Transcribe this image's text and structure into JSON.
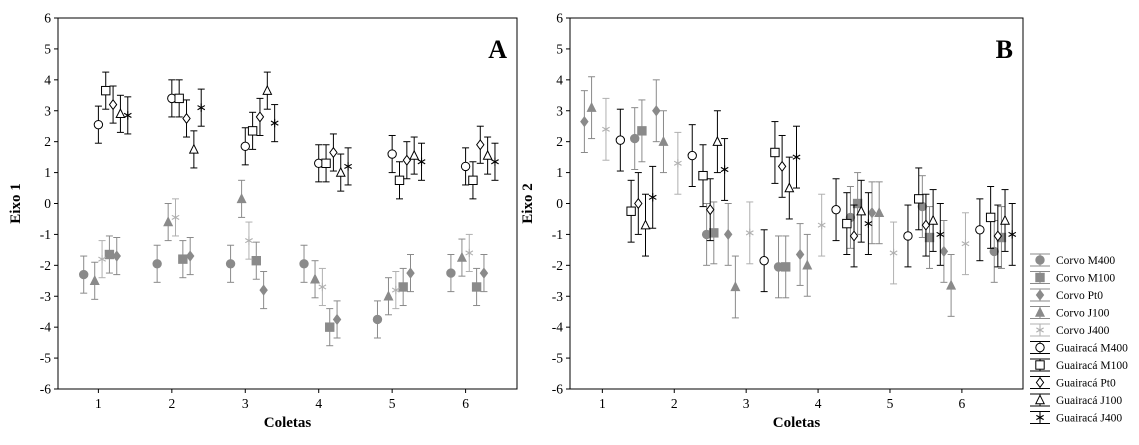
{
  "chart_data": [
    {
      "type": "scatter",
      "panel_label": "A",
      "xlabel": "Coletas",
      "ylabel": "Eixo 1",
      "xticks": [
        "1",
        "2",
        "3",
        "4",
        "5",
        "6"
      ],
      "yticks": [
        "-6",
        "-5",
        "-4",
        "-3",
        "-2",
        "-1",
        "0",
        "1",
        "2",
        "3",
        "4",
        "5",
        "6"
      ],
      "ylim": [
        -6,
        6
      ],
      "error_bars": true,
      "grid": false,
      "series": [
        {
          "name": "Corvo M400",
          "x": [
            0.8,
            1.8,
            2.8,
            3.8,
            4.8,
            5.8
          ],
          "y": [
            -2.3,
            -1.95,
            -1.95,
            -1.95,
            -3.75,
            -2.25
          ],
          "err": [
            0.6,
            0.6,
            0.6,
            0.6,
            0.6,
            0.6
          ]
        },
        {
          "name": "Corvo M100",
          "x": [
            1.15,
            2.15,
            3.15,
            4.15,
            5.15,
            6.15
          ],
          "y": [
            -1.65,
            -1.8,
            -1.85,
            -4.0,
            -2.7,
            -2.7
          ],
          "err": [
            0.6,
            0.6,
            0.6,
            0.6,
            0.6,
            0.6
          ]
        },
        {
          "name": "Corvo Pt0",
          "x": [
            1.25,
            2.25,
            3.25,
            4.25,
            5.25,
            6.25
          ],
          "y": [
            -1.7,
            -1.7,
            -2.8,
            -3.75,
            -2.25,
            -2.25
          ],
          "err": [
            0.6,
            0.6,
            0.6,
            0.6,
            0.6,
            0.6
          ]
        },
        {
          "name": "Corvo J100",
          "x": [
            0.95,
            1.95,
            2.95,
            3.95,
            4.95,
            5.95
          ],
          "y": [
            -2.5,
            -0.6,
            0.15,
            -2.45,
            -3.0,
            -1.75
          ],
          "err": [
            0.6,
            0.6,
            0.6,
            0.6,
            0.6,
            0.6
          ]
        },
        {
          "name": "Corvo J400",
          "x": [
            1.05,
            2.05,
            3.05,
            4.05,
            5.05,
            6.05
          ],
          "y": [
            -1.8,
            -0.45,
            -1.2,
            -2.7,
            -2.8,
            -1.6
          ],
          "err": [
            0.6,
            0.6,
            0.6,
            0.6,
            0.6,
            0.6
          ]
        },
        {
          "name": "Guairacá M400",
          "x": [
            1.0,
            2.0,
            3.0,
            4.0,
            5.0,
            6.0
          ],
          "y": [
            2.55,
            3.4,
            1.85,
            1.3,
            1.6,
            1.2
          ],
          "err": [
            0.6,
            0.6,
            0.6,
            0.6,
            0.6,
            0.6
          ]
        },
        {
          "name": "Guairacá M100",
          "x": [
            1.1,
            2.1,
            3.1,
            4.1,
            5.1,
            6.1
          ],
          "y": [
            3.65,
            3.4,
            2.35,
            1.3,
            0.75,
            0.75
          ],
          "err": [
            0.6,
            0.6,
            0.6,
            0.6,
            0.6,
            0.6
          ]
        },
        {
          "name": "Guairacá Pt0",
          "x": [
            1.2,
            2.2,
            3.2,
            4.2,
            5.2,
            6.2
          ],
          "y": [
            3.2,
            2.75,
            2.8,
            1.65,
            1.4,
            1.9
          ],
          "err": [
            0.6,
            0.6,
            0.6,
            0.6,
            0.6,
            0.6
          ]
        },
        {
          "name": "Guairacá J100",
          "x": [
            1.3,
            2.3,
            3.3,
            4.3,
            5.3,
            6.3
          ],
          "y": [
            2.9,
            1.75,
            3.65,
            1.0,
            1.55,
            1.55
          ],
          "err": [
            0.6,
            0.6,
            0.6,
            0.6,
            0.6,
            0.6
          ]
        },
        {
          "name": "Guairacá J400",
          "x": [
            1.4,
            2.4,
            3.4,
            4.4,
            5.4,
            6.4
          ],
          "y": [
            2.85,
            3.1,
            2.6,
            1.2,
            1.35,
            1.35
          ],
          "err": [
            0.6,
            0.6,
            0.6,
            0.6,
            0.6,
            0.6
          ]
        }
      ]
    },
    {
      "type": "scatter",
      "panel_label": "B",
      "xlabel": "Coletas",
      "ylabel": "Eixo 2",
      "xticks": [
        "1",
        "2",
        "3",
        "4",
        "5",
        "6"
      ],
      "yticks": [
        "-6",
        "-5",
        "-4",
        "-3",
        "-2",
        "-1",
        "0",
        "1",
        "2",
        "3",
        "4",
        "5",
        "6"
      ],
      "ylim": [
        -6,
        6
      ],
      "error_bars": true,
      "grid": false,
      "series": [
        {
          "name": "Corvo M400",
          "x": [
            1.45,
            2.45,
            3.45,
            4.45,
            5.45,
            6.45
          ],
          "y": [
            2.1,
            -1.0,
            -2.05,
            -0.45,
            -0.1,
            -1.55
          ],
          "err": [
            1.0,
            1.0,
            1.0,
            1.0,
            1.0,
            1.0
          ]
        },
        {
          "name": "Corvo M100",
          "x": [
            1.55,
            2.55,
            3.55,
            4.55,
            5.55,
            6.55
          ],
          "y": [
            2.35,
            -0.95,
            -2.05,
            0.0,
            -1.1,
            -1.1
          ],
          "err": [
            1.0,
            1.0,
            1.0,
            1.0,
            1.0,
            1.0
          ]
        },
        {
          "name": "Corvo Pt0",
          "x": [
            0.75,
            1.75,
            2.75,
            3.75,
            4.75,
            5.75
          ],
          "y": [
            2.65,
            3.0,
            -1.0,
            -1.65,
            -0.3,
            -1.55
          ],
          "err": [
            1.0,
            1.0,
            1.0,
            1.0,
            1.0,
            1.0
          ]
        },
        {
          "name": "Corvo J100",
          "x": [
            0.85,
            1.85,
            2.85,
            3.85,
            4.85,
            5.85
          ],
          "y": [
            3.1,
            2.0,
            -2.7,
            -2.0,
            -0.3,
            -2.65
          ],
          "err": [
            1.0,
            1.0,
            1.0,
            1.0,
            1.0,
            1.0
          ]
        },
        {
          "name": "Corvo J400",
          "x": [
            1.05,
            2.05,
            3.05,
            4.05,
            5.05,
            6.05
          ],
          "y": [
            2.4,
            1.3,
            -0.95,
            -0.7,
            -1.6,
            -1.3
          ],
          "err": [
            1.0,
            1.0,
            1.0,
            1.0,
            1.0,
            1.0
          ]
        },
        {
          "name": "Guairacá M400",
          "x": [
            1.25,
            2.25,
            3.25,
            4.25,
            5.25,
            6.25
          ],
          "y": [
            2.05,
            1.55,
            -1.85,
            -0.2,
            -1.05,
            -0.85
          ],
          "err": [
            1.0,
            1.0,
            1.0,
            1.0,
            1.0,
            1.0
          ]
        },
        {
          "name": "Guairacá M100",
          "x": [
            1.4,
            2.4,
            3.4,
            4.4,
            5.4,
            6.4
          ],
          "y": [
            -0.25,
            0.9,
            1.65,
            -0.65,
            0.15,
            -0.45
          ],
          "err": [
            1.0,
            1.0,
            1.0,
            1.0,
            1.0,
            1.0
          ]
        },
        {
          "name": "Guairacá Pt0",
          "x": [
            1.5,
            2.5,
            3.5,
            4.5,
            5.5,
            6.5
          ],
          "y": [
            0.0,
            -0.2,
            1.2,
            -1.05,
            -0.7,
            -1.05
          ],
          "err": [
            1.0,
            1.0,
            1.0,
            1.0,
            1.0,
            1.0
          ]
        },
        {
          "name": "Guairacá J100",
          "x": [
            1.6,
            2.6,
            3.6,
            4.6,
            5.6,
            6.6
          ],
          "y": [
            -0.7,
            2.0,
            0.5,
            -0.25,
            -0.55,
            -0.55
          ],
          "err": [
            1.0,
            1.0,
            1.0,
            1.0,
            1.0,
            1.0
          ]
        },
        {
          "name": "Guairacá J400",
          "x": [
            1.7,
            2.7,
            3.7,
            4.7,
            5.7,
            6.7
          ],
          "y": [
            0.2,
            1.1,
            1.5,
            -0.65,
            -1.0,
            -1.0
          ],
          "err": [
            1.0,
            1.0,
            1.0,
            1.0,
            1.0,
            1.0
          ]
        }
      ],
      "legend_position": "right"
    }
  ],
  "colors": {
    "corvo": "#8a8a8a",
    "corvo_j400": "#b0b0b0",
    "guairaca": "#000000"
  },
  "markers": {
    "Corvo M400": "circle-filled",
    "Corvo M100": "square-filled",
    "Corvo Pt0": "diamond-filled",
    "Corvo J100": "triangle-filled",
    "Corvo J400": "asterisk",
    "Guairacá M400": "circle-open",
    "Guairacá M100": "square-open",
    "Guairacá Pt0": "diamond-open",
    "Guairacá J100": "triangle-open",
    "Guairacá J400": "asterisk"
  },
  "legend": {
    "entries": [
      "Corvo M400",
      "Corvo M100",
      "Corvo Pt0",
      "Corvo J100",
      "Corvo J400",
      "Guairacá M400",
      "Guairacá M100",
      "Guairacá Pt0",
      "Guairacá J100",
      "Guairacá J400"
    ]
  }
}
